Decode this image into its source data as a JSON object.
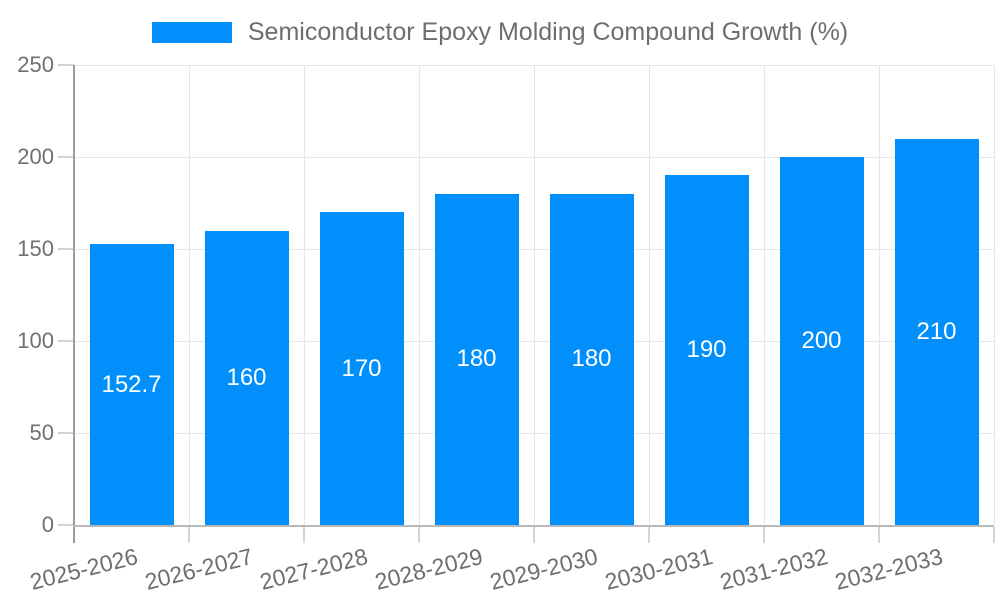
{
  "legend": {
    "label": "Semiconductor Epoxy Molding Compound Growth (%)",
    "swatch_color": "#008FFB"
  },
  "chart_data": {
    "type": "bar",
    "title": "Semiconductor Epoxy Molding Compound Growth (%)",
    "series_name": "Semiconductor Epoxy Molding Compound Growth (%)",
    "categories": [
      "2025-2026",
      "2026-2027",
      "2027-2028",
      "2028-2029",
      "2029-2030",
      "2030-2031",
      "2031-2032",
      "2032-2033"
    ],
    "values": [
      152.7,
      160,
      170,
      180,
      180,
      190,
      200,
      210
    ],
    "bar_labels": [
      "152.7",
      "160",
      "170",
      "180",
      "180",
      "190",
      "200",
      "210"
    ],
    "xlabel": "",
    "ylabel": "",
    "ylim": [
      0,
      250
    ],
    "yticks": [
      0,
      50,
      100,
      150,
      200,
      250
    ],
    "grid": true,
    "legend_position": "top",
    "bar_color": "#008FFB",
    "bar_label_color": "#ffffff",
    "axis_label_color": "#707070"
  }
}
